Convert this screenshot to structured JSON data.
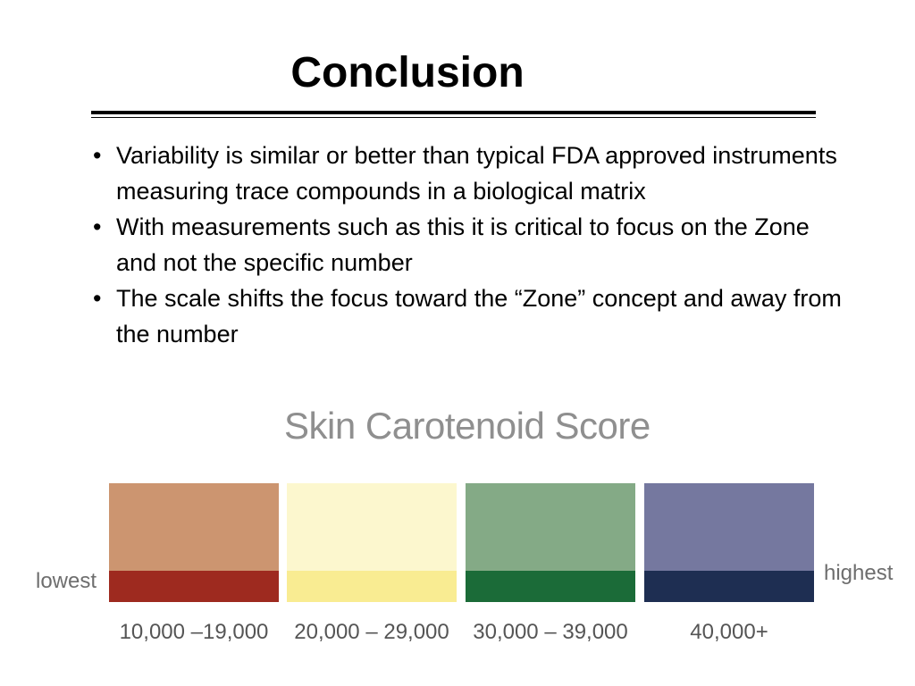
{
  "title": "Conclusion",
  "bullets": [
    "Variability is similar or better than typical FDA approved instruments measuring trace compounds in a biological matrix",
    "With measurements such as this it is critical to focus on the Zone and not the specific number",
    "The scale shifts the focus toward the “Zone” concept and away from the number"
  ],
  "bullet_char": "•",
  "scale": {
    "title": "Skin Carotenoid Score",
    "low_label": "lowest",
    "high_label": "highest",
    "zones": [
      {
        "range": "10,000 –19,000",
        "color_top": "#cc9570",
        "color_bottom": "#9e2a1f"
      },
      {
        "range": "20,000 – 29,000",
        "color_top": "#fcf7ce",
        "color_bottom": "#f9ec92"
      },
      {
        "range": "30,000 – 39,000",
        "color_top": "#84aa86",
        "color_bottom": "#1b6b38"
      },
      {
        "range": "40,000+",
        "color_top": "#75789f",
        "color_bottom": "#1e2e52"
      }
    ]
  }
}
